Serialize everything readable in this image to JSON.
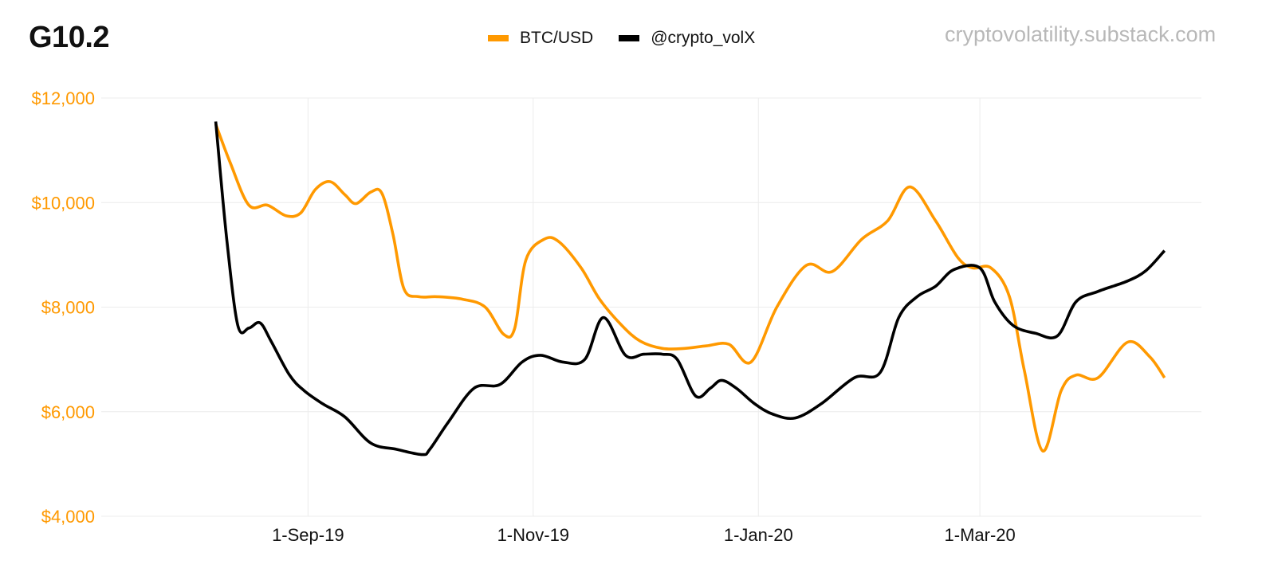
{
  "chart_data": {
    "type": "line",
    "title": "G10.2",
    "source": "cryptovolatility.substack.com",
    "xlabel": "",
    "ylabel": "",
    "x_ticks": [
      {
        "label": "1-Sep-19",
        "date": "2019-09-01"
      },
      {
        "label": "1-Nov-19",
        "date": "2019-11-01"
      },
      {
        "label": "1-Jan-20",
        "date": "2020-01-01"
      },
      {
        "label": "1-Mar-20",
        "date": "2020-03-01"
      }
    ],
    "y_ticks": [
      "$4,000",
      "$6,000",
      "$8,000",
      "$10,000",
      "$12,000"
    ],
    "ylim": [
      4000,
      12000
    ],
    "xlim": [
      "2019-07-07",
      "2020-04-30"
    ],
    "grid": true,
    "legend": "top-center",
    "series": [
      {
        "name": "BTC/USD",
        "color": "#ff9900",
        "points": [
          [
            "2019-08-07",
            11500
          ],
          [
            "2019-08-11",
            10750
          ],
          [
            "2019-08-16",
            9950
          ],
          [
            "2019-08-21",
            9950
          ],
          [
            "2019-08-26",
            9750
          ],
          [
            "2019-08-30",
            9800
          ],
          [
            "2019-09-03",
            10250
          ],
          [
            "2019-09-07",
            10400
          ],
          [
            "2019-09-11",
            10150
          ],
          [
            "2019-09-14",
            9980
          ],
          [
            "2019-09-18",
            10200
          ],
          [
            "2019-09-21",
            10180
          ],
          [
            "2019-09-24",
            9400
          ],
          [
            "2019-09-27",
            8350
          ],
          [
            "2019-10-01",
            8200
          ],
          [
            "2019-10-06",
            8200
          ],
          [
            "2019-10-13",
            8150
          ],
          [
            "2019-10-19",
            8000
          ],
          [
            "2019-10-24",
            7480
          ],
          [
            "2019-10-27",
            7600
          ],
          [
            "2019-10-30",
            8900
          ],
          [
            "2019-11-04",
            9300
          ],
          [
            "2019-11-08",
            9250
          ],
          [
            "2019-11-14",
            8750
          ],
          [
            "2019-11-19",
            8150
          ],
          [
            "2019-11-25",
            7650
          ],
          [
            "2019-11-30",
            7350
          ],
          [
            "2019-12-06",
            7210
          ],
          [
            "2019-12-12",
            7210
          ],
          [
            "2019-12-18",
            7260
          ],
          [
            "2019-12-24",
            7290
          ],
          [
            "2019-12-30",
            6950
          ],
          [
            "2020-01-06",
            8000
          ],
          [
            "2020-01-14",
            8800
          ],
          [
            "2020-01-21",
            8680
          ],
          [
            "2020-01-29",
            9300
          ],
          [
            "2020-02-05",
            9650
          ],
          [
            "2020-02-11",
            10300
          ],
          [
            "2020-02-18",
            9650
          ],
          [
            "2020-02-24",
            8950
          ],
          [
            "2020-02-28",
            8750
          ],
          [
            "2020-03-04",
            8750
          ],
          [
            "2020-03-09",
            8200
          ],
          [
            "2020-03-13",
            6800
          ],
          [
            "2020-03-18",
            5250
          ],
          [
            "2020-03-23",
            6400
          ],
          [
            "2020-03-27",
            6700
          ],
          [
            "2020-04-02",
            6650
          ],
          [
            "2020-04-10",
            7330
          ],
          [
            "2020-04-16",
            7050
          ],
          [
            "2020-04-20",
            6650
          ]
        ]
      },
      {
        "name": "@crypto_volX",
        "color": "#000000",
        "points": [
          [
            "2019-08-07",
            11550
          ],
          [
            "2019-08-10",
            9300
          ],
          [
            "2019-08-13",
            7650
          ],
          [
            "2019-08-16",
            7600
          ],
          [
            "2019-08-19",
            7700
          ],
          [
            "2019-08-22",
            7350
          ],
          [
            "2019-08-27",
            6700
          ],
          [
            "2019-08-31",
            6400
          ],
          [
            "2019-09-05",
            6150
          ],
          [
            "2019-09-11",
            5900
          ],
          [
            "2019-09-18",
            5400
          ],
          [
            "2019-09-25",
            5280
          ],
          [
            "2019-10-02",
            5180
          ],
          [
            "2019-10-04",
            5280
          ],
          [
            "2019-10-09",
            5800
          ],
          [
            "2019-10-16",
            6450
          ],
          [
            "2019-10-23",
            6520
          ],
          [
            "2019-10-29",
            6950
          ],
          [
            "2019-11-03",
            7080
          ],
          [
            "2019-11-09",
            6950
          ],
          [
            "2019-11-15",
            7000
          ],
          [
            "2019-11-20",
            7800
          ],
          [
            "2019-11-26",
            7080
          ],
          [
            "2019-12-01",
            7100
          ],
          [
            "2019-12-06",
            7100
          ],
          [
            "2019-12-10",
            7000
          ],
          [
            "2019-12-15",
            6300
          ],
          [
            "2019-12-19",
            6450
          ],
          [
            "2019-12-22",
            6600
          ],
          [
            "2019-12-26",
            6450
          ],
          [
            "2019-12-31",
            6150
          ],
          [
            "2020-01-05",
            5950
          ],
          [
            "2020-01-11",
            5880
          ],
          [
            "2020-01-18",
            6150
          ],
          [
            "2020-01-27",
            6650
          ],
          [
            "2020-02-03",
            6750
          ],
          [
            "2020-02-08",
            7800
          ],
          [
            "2020-02-13",
            8200
          ],
          [
            "2020-02-18",
            8400
          ],
          [
            "2020-02-23",
            8720
          ],
          [
            "2020-03-01",
            8750
          ],
          [
            "2020-03-05",
            8100
          ],
          [
            "2020-03-10",
            7650
          ],
          [
            "2020-03-16",
            7500
          ],
          [
            "2020-03-22",
            7450
          ],
          [
            "2020-03-27",
            8100
          ],
          [
            "2020-04-02",
            8300
          ],
          [
            "2020-04-10",
            8500
          ],
          [
            "2020-04-15",
            8700
          ],
          [
            "2020-04-20",
            9080
          ]
        ]
      }
    ]
  }
}
